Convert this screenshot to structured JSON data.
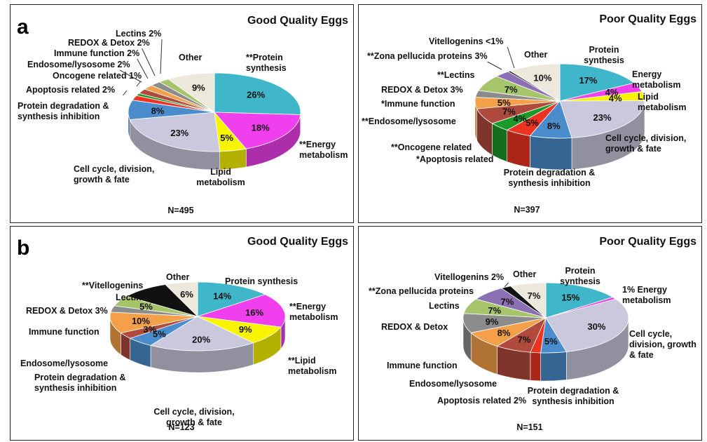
{
  "sections": [
    {
      "letter": "a"
    },
    {
      "letter": "b"
    }
  ],
  "chart_data": [
    {
      "type": "pie",
      "title": "Good Quality Eggs",
      "n_label": "N=495",
      "slices": [
        {
          "label": "Protein synthesis",
          "marker": "**",
          "value": 26,
          "value_label": "26%",
          "color": "#3fb6c9"
        },
        {
          "label": "Energy metabolism",
          "marker": "**",
          "value": 18,
          "value_label": "18%",
          "color": "#f040ee"
        },
        {
          "label": "Lipid metabolism",
          "marker": "",
          "value": 5,
          "value_label": "5%",
          "color": "#f8f400"
        },
        {
          "label": "Cell cycle, division, growth & fate",
          "marker": "",
          "value": 23,
          "value_label": "23%",
          "color": "#c9c8dc"
        },
        {
          "label": "Protein degradation & synthesis inhibition",
          "marker": "",
          "value": 8,
          "value_label": "8%",
          "color": "#4a8ccc"
        },
        {
          "label": "Apoptosis related",
          "marker": "",
          "value": 2,
          "value_label": "2%",
          "color": "#ee3322"
        },
        {
          "label": "Oncogene related",
          "marker": "",
          "value": 1,
          "value_label": "1%",
          "color": "#1a9a2a"
        },
        {
          "label": "Endosome/lysosome",
          "marker": "",
          "value": 2,
          "value_label": "2%",
          "color": "#b04a3c"
        },
        {
          "label": "Immune function",
          "marker": "",
          "value": 2,
          "value_label": "2%",
          "color": "#f4a048"
        },
        {
          "label": "REDOX & Detox",
          "marker": "",
          "value": 2,
          "value_label": "2%",
          "color": "#8c8c8c"
        },
        {
          "label": "Lectins",
          "marker": "",
          "value": 2,
          "value_label": "2%",
          "color": "#a6c46a"
        },
        {
          "label": "Other",
          "marker": "",
          "value": 9,
          "value_label": "9%",
          "color": "#ece8dc"
        }
      ]
    },
    {
      "type": "pie",
      "title": "Poor Quality Eggs",
      "n_label": "N=397",
      "slices": [
        {
          "label": "Protein synthesis",
          "marker": "",
          "value": 17,
          "value_label": "17%",
          "color": "#3fb6c9"
        },
        {
          "label": "Energy metabolism",
          "marker": "",
          "value": 4,
          "value_label": "4%",
          "color": "#f040ee"
        },
        {
          "label": "Lipid metabolism",
          "marker": "",
          "value": 4,
          "value_label": "4%",
          "color": "#f8f400"
        },
        {
          "label": "Cell cycle, division, growth & fate",
          "marker": "",
          "value": 23,
          "value_label": "23%",
          "color": "#c9c8dc"
        },
        {
          "label": "Protein degradation & synthesis inhibition",
          "marker": "",
          "value": 8,
          "value_label": "8%",
          "color": "#4a8ccc"
        },
        {
          "label": "Apoptosis related",
          "marker": "*",
          "value": 5,
          "value_label": "5%",
          "color": "#ee3322"
        },
        {
          "label": "Oncogene related",
          "marker": "**",
          "value": 4,
          "value_label": "4%",
          "color": "#1a9a2a"
        },
        {
          "label": "Endosome/lysosome",
          "marker": "**",
          "value": 7,
          "value_label": "7%",
          "color": "#b04a3c"
        },
        {
          "label": "Immune function",
          "marker": "*",
          "value": 5,
          "value_label": "5%",
          "color": "#f4a048"
        },
        {
          "label": "REDOX & Detox",
          "marker": "",
          "value": 3,
          "value_label": "3%",
          "color": "#8c8c8c"
        },
        {
          "label": "Lectins",
          "marker": "**",
          "value": 7,
          "value_label": "7%",
          "color": "#a6c46a"
        },
        {
          "label": "Zona pellucida proteins",
          "marker": "**",
          "value": 3,
          "value_label": "3%",
          "color": "#8c70b4"
        },
        {
          "label": "Vitellogenins",
          "marker": "",
          "value": 0.5,
          "value_label": "<1%",
          "color": "#111111"
        },
        {
          "label": "Other",
          "marker": "",
          "value": 10,
          "value_label": "10%",
          "color": "#ece8dc"
        }
      ]
    },
    {
      "type": "pie",
      "title": "Good Quality Eggs",
      "n_label": "N=123",
      "slices": [
        {
          "label": "Protein synthesis",
          "marker": "",
          "value": 14,
          "value_label": "14%",
          "color": "#3fb6c9"
        },
        {
          "label": "Energy metabolism",
          "marker": "**",
          "value": 16,
          "value_label": "16%",
          "color": "#f040ee"
        },
        {
          "label": "Lipid metabolism",
          "marker": "**",
          "value": 9,
          "value_label": "9%",
          "color": "#f8f400"
        },
        {
          "label": "Cell cycle, division, growth & fate",
          "marker": "",
          "value": 20,
          "value_label": "20%",
          "color": "#c9c8dc"
        },
        {
          "label": "Protein degradation & synthesis inhibition",
          "marker": "",
          "value": 5,
          "value_label": "5%",
          "color": "#4a8ccc"
        },
        {
          "label": "Endosome/lysosome",
          "marker": "",
          "value": 3,
          "value_label": "3%",
          "color": "#b04a3c"
        },
        {
          "label": "Immune function",
          "marker": "",
          "value": 10,
          "value_label": "10%",
          "color": "#f4a048"
        },
        {
          "label": "REDOX & Detox",
          "marker": "",
          "value": 3,
          "value_label": "3%",
          "color": "#8c8c8c"
        },
        {
          "label": "Lectins",
          "marker": "",
          "value": 5,
          "value_label": "5%",
          "color": "#a6c46a"
        },
        {
          "label": "Vitellogenins",
          "marker": "**",
          "value": 9,
          "value_label": "9%",
          "color": "#111111"
        },
        {
          "label": "Other",
          "marker": "",
          "value": 6,
          "value_label": "6%",
          "color": "#ece8dc"
        }
      ]
    },
    {
      "type": "pie",
      "title": "Poor Quality Eggs",
      "n_label": "N=151",
      "slices": [
        {
          "label": "Protein synthesis",
          "marker": "",
          "value": 15,
          "value_label": "15%",
          "color": "#3fb6c9"
        },
        {
          "label": "Energy metabolism",
          "marker": "",
          "value": 1,
          "value_label": "1%",
          "color": "#f040ee"
        },
        {
          "label": "Cell cycle, division, growth & fate",
          "marker": "",
          "value": 30,
          "value_label": "30%",
          "color": "#c9c8dc"
        },
        {
          "label": "Protein degradation & synthesis inhibition",
          "marker": "",
          "value": 5,
          "value_label": "5%",
          "color": "#4a8ccc"
        },
        {
          "label": "Apoptosis related",
          "marker": "",
          "value": 2,
          "value_label": "2%",
          "color": "#ee3322"
        },
        {
          "label": "Endosome/lysosome",
          "marker": "",
          "value": 7,
          "value_label": "7%",
          "color": "#b04a3c"
        },
        {
          "label": "Immune function",
          "marker": "",
          "value": 8,
          "value_label": "8%",
          "color": "#f4a048"
        },
        {
          "label": "REDOX & Detox",
          "marker": "",
          "value": 9,
          "value_label": "9%",
          "color": "#8c8c8c"
        },
        {
          "label": "Lectins",
          "marker": "",
          "value": 7,
          "value_label": "7%",
          "color": "#a6c46a"
        },
        {
          "label": "Zona pellucida proteins",
          "marker": "**",
          "value": 7,
          "value_label": "7%",
          "color": "#8c70b4"
        },
        {
          "label": "Vitellogenins",
          "marker": "",
          "value": 2,
          "value_label": "2%",
          "color": "#111111"
        },
        {
          "label": "Other",
          "marker": "",
          "value": 7,
          "value_label": "7%",
          "color": "#ece8dc"
        }
      ]
    }
  ]
}
